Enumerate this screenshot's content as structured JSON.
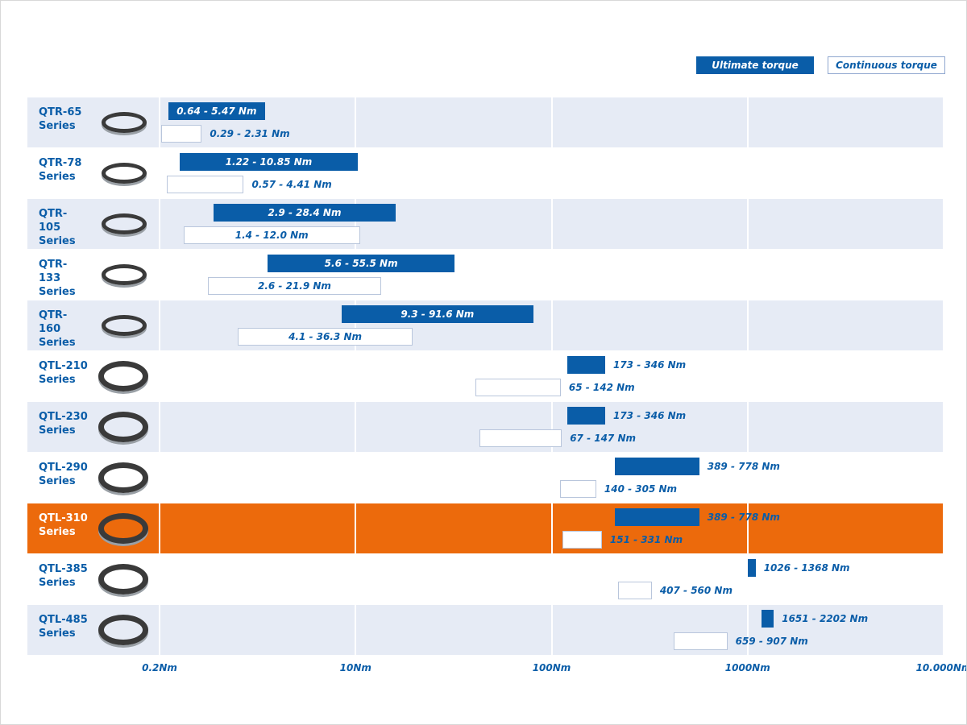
{
  "chart_data": {
    "type": "range-bar",
    "categories": [
      "QTR-65 Series",
      "QTR-78 Series",
      "QTR-105 Series",
      "QTR-133 Series",
      "QTR-160 Series",
      "QTL-210 Series",
      "QTL-230 Series",
      "QTL-290 Series",
      "QTL-310 Series",
      "QTL-385 Series",
      "QTL-485 Series"
    ],
    "series": [
      {
        "name": "Ultimate torque",
        "color": "#0a5da8",
        "values": [
          [
            0.64,
            5.47
          ],
          [
            1.22,
            10.85
          ],
          [
            2.9,
            28.4
          ],
          [
            5.6,
            55.5
          ],
          [
            9.3,
            91.6
          ],
          [
            173,
            346
          ],
          [
            173,
            346
          ],
          [
            389,
            778
          ],
          [
            389,
            778
          ],
          [
            1026,
            1368
          ],
          [
            1651,
            2202
          ]
        ],
        "value_labels": [
          "0.64 - 5.47 Nm",
          "1.22 - 10.85 Nm",
          "2.9 - 28.4 Nm",
          "5.6 - 55.5 Nm",
          "9.3 - 91.6 Nm",
          "173 - 346 Nm",
          "173 - 346 Nm",
          "389 - 778 Nm",
          "389 - 778 Nm",
          "1026 - 1368 Nm",
          "1651 - 2202 Nm"
        ]
      },
      {
        "name": "Continuous torque",
        "color": "#ffffff",
        "values": [
          [
            0.29,
            2.31
          ],
          [
            0.57,
            4.41
          ],
          [
            1.4,
            12.0
          ],
          [
            2.6,
            21.9
          ],
          [
            4.1,
            36.3
          ],
          [
            65,
            142
          ],
          [
            67,
            147
          ],
          [
            140,
            305
          ],
          [
            151,
            331
          ],
          [
            407,
            560
          ],
          [
            659,
            907
          ]
        ],
        "value_labels": [
          "0.29 - 2.31 Nm",
          "0.57 - 4.41 Nm",
          "1.4 - 12.0 Nm",
          "2.6 - 21.9 Nm",
          "4.1 - 36.3 Nm",
          "65 - 142 Nm",
          "67 - 147 Nm",
          "140 - 305 Nm",
          "151 - 331 Nm",
          "407 - 560 Nm",
          "659 - 907 Nm"
        ]
      }
    ],
    "xlim": [
      0.2,
      10000
    ],
    "xticks": [
      {
        "value": 0.2,
        "label": "0.2Nm"
      },
      {
        "value": 10,
        "label": "10Nm"
      },
      {
        "value": 100,
        "label": "100Nm"
      },
      {
        "value": 1000,
        "label": "1000Nm"
      },
      {
        "value": 10000,
        "label": "10.000Nm"
      }
    ],
    "grid": true,
    "legend": "top-right",
    "highlight": {
      "category": "QTL-310 Series",
      "color": "#ec6a0c"
    }
  }
}
